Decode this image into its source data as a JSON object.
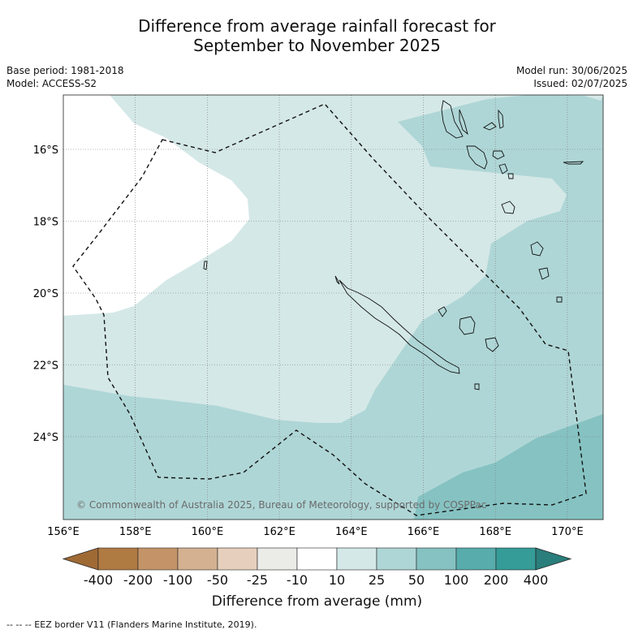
{
  "title": {
    "line1": "Difference from average rainfall forecast for",
    "line2": "September to November 2025"
  },
  "meta": {
    "base_period": "Base period: 1981-2018",
    "model": "Model: ACCESS-S2",
    "model_run": "Model run: 30/06/2025",
    "issued": "Issued: 02/07/2025"
  },
  "map": {
    "lon_ticks": [
      "156°E",
      "158°E",
      "160°E",
      "162°E",
      "164°E",
      "166°E",
      "168°E",
      "170°E"
    ],
    "lat_ticks": [
      "16°S",
      "18°S",
      "20°S",
      "22°S",
      "24°S"
    ],
    "copyright": "© Commonwealth of Australia 2025, Bureau of Meteorology, supported by COSPPac"
  },
  "colorbar": {
    "labels": [
      "-400",
      "-200",
      "-100",
      "-50",
      "-25",
      "-10",
      "10",
      "25",
      "50",
      "100",
      "200",
      "400"
    ],
    "colors": [
      "#a06a35",
      "#b07a43",
      "#c49468",
      "#d4b191",
      "#e6d0bd",
      "#ebebe8",
      "#ffffff",
      "#d4e8e7",
      "#afd6d6",
      "#86c2c2",
      "#58acac",
      "#359c98",
      "#2a7e7b"
    ],
    "title": "Difference from average (mm)"
  },
  "footer": "--  --  -- EEZ border V11 (Flanders Marine Institute, 2019)."
}
